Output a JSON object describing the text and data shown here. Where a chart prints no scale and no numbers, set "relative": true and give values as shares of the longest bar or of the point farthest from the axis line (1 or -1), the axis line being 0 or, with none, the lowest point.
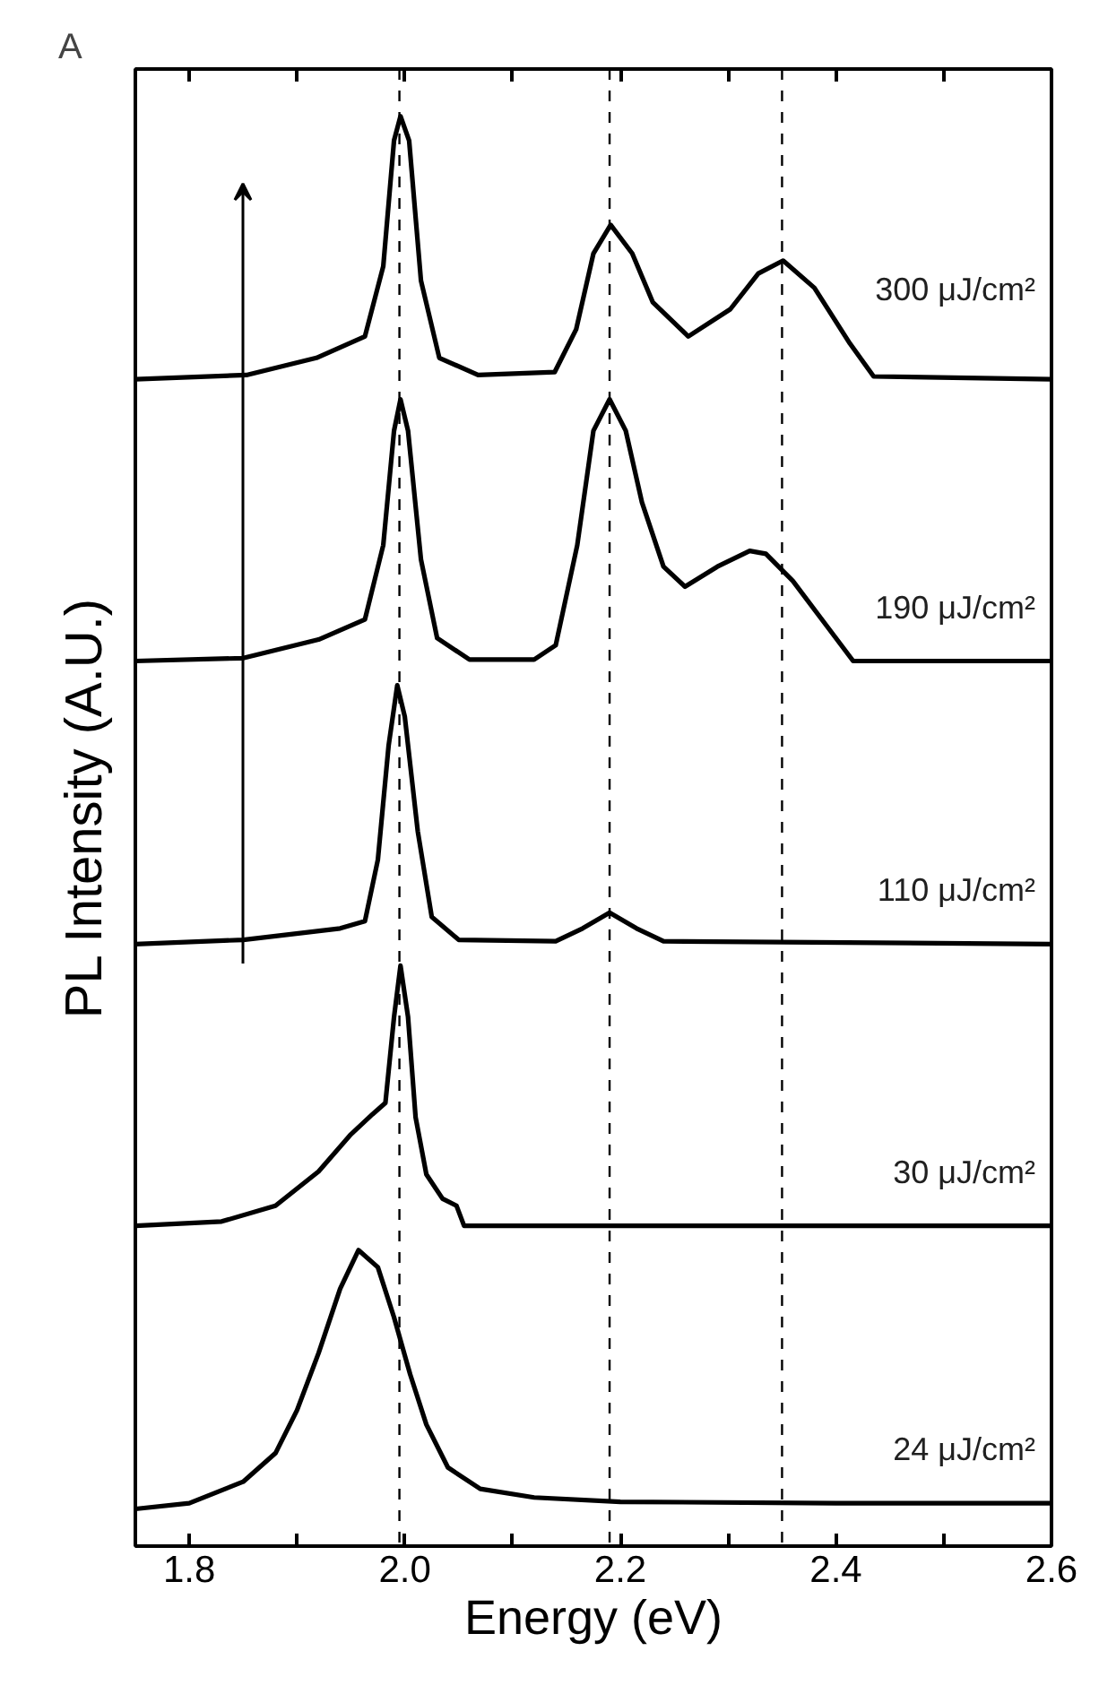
{
  "chart_data": {
    "type": "line",
    "xlabel": "Energy (eV)",
    "ylabel": "PL Intensity (A.U.)",
    "annotations": [
      "A"
    ],
    "relative": true,
    "xlim": [
      1.75,
      2.6
    ],
    "xticks": [
      1.8,
      {
        "value": 1.9,
        "label": null
      },
      {
        "value": 2.0,
        "label": "2.0"
      },
      {
        "value": 2.1,
        "label": null
      },
      2.2,
      {
        "value": 2.3,
        "label": null
      },
      2.4,
      {
        "value": 2.5,
        "label": null
      },
      2.6
    ],
    "marker": "none",
    "line_style": "solid",
    "ref_lines": [
      {
        "axis": "x",
        "value": 1.995,
        "label": null,
        "color": "#000000",
        "line_style": "dashed"
      },
      {
        "axis": "x",
        "value": 2.19,
        "label": null,
        "color": "#000000",
        "line_style": "dashed"
      },
      {
        "axis": "x",
        "value": 2.35,
        "label": null,
        "color": "#000000",
        "line_style": "dashed"
      }
    ],
    "series": [
      {
        "name": "300 μJ/cm²",
        "color": "#000000",
        "x": [
          1.75,
          1.853,
          1.918,
          1.963,
          1.98,
          1.99,
          1.996,
          2.004,
          2.015,
          2.032,
          2.068,
          2.139,
          2.159,
          2.175,
          2.191,
          2.211,
          2.23,
          2.263,
          2.302,
          2.328,
          2.351,
          2.38,
          2.413,
          2.435,
          2.6
        ],
        "values": [
          0.816,
          0.819,
          0.831,
          0.846,
          0.895,
          0.983,
          1.0,
          0.983,
          0.885,
          0.831,
          0.819,
          0.821,
          0.851,
          0.904,
          0.924,
          0.904,
          0.87,
          0.846,
          0.865,
          0.89,
          0.899,
          0.88,
          0.841,
          0.818,
          0.816
        ]
      },
      {
        "name": "190 μJ/cm²",
        "color": "#000000",
        "x": [
          1.75,
          1.85,
          1.92,
          1.963,
          1.98,
          1.99,
          1.996,
          2.003,
          2.015,
          2.03,
          2.06,
          2.12,
          2.14,
          2.16,
          2.175,
          2.19,
          2.205,
          2.22,
          2.24,
          2.26,
          2.29,
          2.32,
          2.335,
          2.36,
          2.39,
          2.416,
          2.6
        ],
        "values": [
          0.619,
          0.621,
          0.634,
          0.648,
          0.7,
          0.78,
          0.802,
          0.78,
          0.69,
          0.635,
          0.62,
          0.62,
          0.63,
          0.7,
          0.78,
          0.802,
          0.78,
          0.73,
          0.685,
          0.671,
          0.685,
          0.696,
          0.694,
          0.675,
          0.645,
          0.619,
          0.619
        ]
      },
      {
        "name": "110 μJ/cm²",
        "color": "#000000",
        "x": [
          1.75,
          1.85,
          1.94,
          1.963,
          1.975,
          1.985,
          1.993,
          2.0,
          2.012,
          2.025,
          2.05,
          2.14,
          2.165,
          2.19,
          2.215,
          2.24,
          2.6
        ],
        "values": [
          0.421,
          0.424,
          0.432,
          0.437,
          0.48,
          0.56,
          0.602,
          0.58,
          0.5,
          0.44,
          0.424,
          0.423,
          0.432,
          0.443,
          0.432,
          0.423,
          0.421
        ]
      },
      {
        "name": "30 μJ/cm²",
        "color": "#000000",
        "x": [
          1.75,
          1.83,
          1.88,
          1.92,
          1.95,
          1.97,
          1.982,
          1.99,
          1.996,
          2.003,
          2.01,
          2.02,
          2.035,
          2.048,
          2.055,
          2.6
        ],
        "values": [
          0.224,
          0.227,
          0.238,
          0.262,
          0.288,
          0.302,
          0.31,
          0.37,
          0.406,
          0.37,
          0.3,
          0.26,
          0.243,
          0.238,
          0.224,
          0.224
        ]
      },
      {
        "name": "24 μJ/cm²",
        "color": "#000000",
        "x": [
          1.75,
          1.8,
          1.85,
          1.88,
          1.9,
          1.92,
          1.94,
          1.957,
          1.975,
          1.99,
          2.005,
          2.02,
          2.04,
          2.07,
          2.12,
          2.2,
          2.4,
          2.6
        ],
        "values": [
          0.026,
          0.03,
          0.045,
          0.065,
          0.095,
          0.135,
          0.18,
          0.207,
          0.195,
          0.16,
          0.12,
          0.085,
          0.055,
          0.04,
          0.034,
          0.031,
          0.03,
          0.03
        ]
      }
    ]
  }
}
